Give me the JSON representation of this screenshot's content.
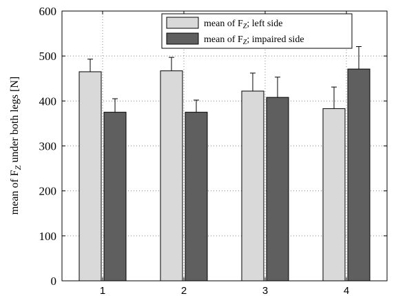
{
  "chart_data": {
    "type": "bar",
    "title": "",
    "categories": [
      "1",
      "2",
      "3",
      "4"
    ],
    "ylim": [
      0,
      600
    ],
    "yticks": [
      0,
      100,
      200,
      300,
      400,
      500,
      600
    ],
    "grid": true,
    "legend_position": "top-right",
    "ylabel": {
      "prefix": "mean of F",
      "subscript": "Z",
      "suffix": " under both legs [N]"
    },
    "series": [
      {
        "name": "mean of F_Z; left side",
        "legend": {
          "prefix": "mean of F",
          "subscript": "Z",
          "suffix": "; left side"
        },
        "color": "#d9d9d9",
        "values": [
          465,
          467,
          422,
          383
        ],
        "errors": [
          28,
          30,
          40,
          48
        ]
      },
      {
        "name": "mean of F_Z; impaired side",
        "legend": {
          "prefix": "mean of F",
          "subscript": "Z",
          "suffix": "; impaired side"
        },
        "color": "#5f5f5f",
        "values": [
          375,
          375,
          408,
          471
        ],
        "errors": [
          30,
          27,
          45,
          50
        ]
      }
    ]
  }
}
